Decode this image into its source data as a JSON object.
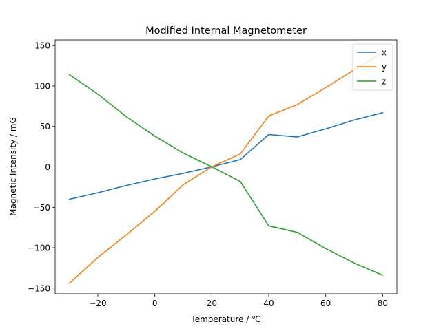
{
  "chart_data": {
    "type": "line",
    "title": "Modified Internal Magnetometer",
    "xlabel": "Temperature / ℃",
    "ylabel": "Magnetic Intensity / mG",
    "xlim": [
      -35,
      85
    ],
    "ylim": [
      -157,
      157
    ],
    "xticks": [
      -20,
      0,
      20,
      40,
      60,
      80
    ],
    "yticks": [
      -150,
      -100,
      -50,
      0,
      50,
      100,
      150
    ],
    "grid": false,
    "legend_position": "top-right",
    "x": [
      -30,
      -20,
      -10,
      0,
      10,
      20,
      30,
      40,
      50,
      60,
      70,
      80
    ],
    "series": [
      {
        "name": "x",
        "color": "#1f77b4",
        "values": [
          -40,
          -32,
          -23,
          -15,
          -8,
          0,
          9,
          40,
          37,
          47,
          58,
          67
        ]
      },
      {
        "name": "y",
        "color": "#ff7f0e",
        "values": [
          -144,
          -112,
          -84,
          -55,
          -22,
          0,
          16,
          63,
          77,
          98,
          120,
          141
        ]
      },
      {
        "name": "z",
        "color": "#2ca02c",
        "values": [
          114,
          90,
          62,
          38,
          17,
          0,
          -18,
          -73,
          -81,
          -101,
          -119,
          -134
        ]
      }
    ]
  }
}
